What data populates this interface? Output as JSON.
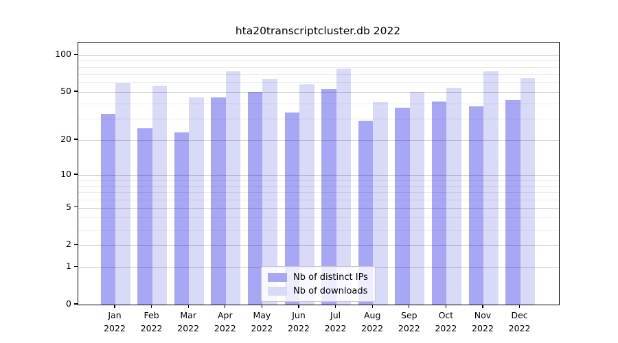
{
  "chart_data": {
    "type": "bar",
    "title": "hta20transcriptcluster.db 2022",
    "categories": [
      "Jan",
      "Feb",
      "Mar",
      "Apr",
      "May",
      "Jun",
      "Jul",
      "Aug",
      "Sep",
      "Oct",
      "Nov",
      "Dec"
    ],
    "year_label": "2022",
    "series": [
      {
        "name": "Nb of distinct IPs",
        "color": "#a7a7f6",
        "values": [
          33,
          25,
          23,
          45,
          50,
          34,
          53,
          29,
          37,
          42,
          38,
          43
        ]
      },
      {
        "name": "Nb of downloads",
        "color": "#d9d9f8",
        "values": [
          59,
          56,
          45,
          74,
          64,
          58,
          78,
          41,
          50,
          54,
          74,
          65
        ]
      }
    ],
    "xlabel": "",
    "ylabel": "",
    "yscale": "log10(1+v)",
    "ylim": [
      0,
      126
    ],
    "yticks": [
      0,
      1,
      2,
      5,
      10,
      20,
      50,
      100
    ],
    "minor_gridlines": [
      3,
      4,
      6,
      7,
      8,
      9,
      30,
      40,
      60,
      70,
      80,
      90
    ],
    "grid": "horizontal",
    "legend_position": "bottom-center"
  }
}
